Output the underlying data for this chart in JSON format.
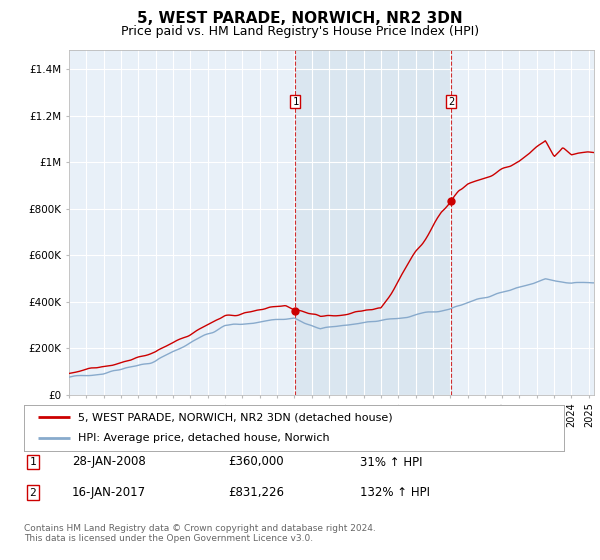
{
  "title": "5, WEST PARADE, NORWICH, NR2 3DN",
  "subtitle": "Price paid vs. HM Land Registry's House Price Index (HPI)",
  "title_fontsize": 11,
  "subtitle_fontsize": 9,
  "ylabel_ticks": [
    "£0",
    "£200K",
    "£400K",
    "£600K",
    "£800K",
    "£1M",
    "£1.2M",
    "£1.4M"
  ],
  "ytick_values": [
    0,
    200000,
    400000,
    600000,
    800000,
    1000000,
    1200000,
    1400000
  ],
  "ylim": [
    0,
    1480000
  ],
  "xlim_start": 1995.0,
  "xlim_end": 2025.3,
  "background_color": "#ffffff",
  "plot_bg_color": "#e8f0f8",
  "grid_color": "#ffffff",
  "red_line_color": "#cc0000",
  "blue_line_color": "#88aacc",
  "sale1_x": 2008.07,
  "sale1_y": 360000,
  "sale2_x": 2017.04,
  "sale2_y": 831226,
  "sale1_label": "28-JAN-2008",
  "sale1_price": "£360,000",
  "sale1_hpi": "31% ↑ HPI",
  "sale2_label": "16-JAN-2017",
  "sale2_price": "£831,226",
  "sale2_hpi": "132% ↑ HPI",
  "legend_line1": "5, WEST PARADE, NORWICH, NR2 3DN (detached house)",
  "legend_line2": "HPI: Average price, detached house, Norwich",
  "footnote": "Contains HM Land Registry data © Crown copyright and database right 2024.\nThis data is licensed under the Open Government Licence v3.0.",
  "shade_color": "#dae6f0"
}
